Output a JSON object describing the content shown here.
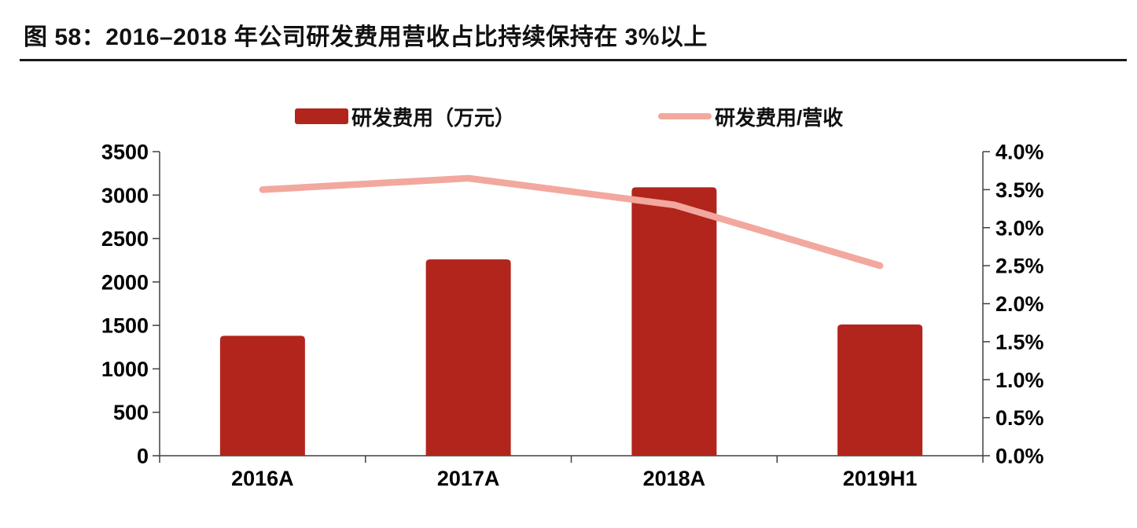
{
  "figure": {
    "title": "图 58：2016–2018 年公司研发费用营收占比持续保持在 3%以上"
  },
  "legend": {
    "items": [
      {
        "label": "研发费用（万元）",
        "type": "bar"
      },
      {
        "label": "研发费用/营收",
        "type": "line"
      }
    ]
  },
  "colors": {
    "bar": "#B2251C",
    "line": "#F2A89E",
    "axis": "#404040",
    "text": "#000000",
    "rule": "#1A1A1A"
  },
  "chart_data": {
    "type": "bar",
    "title": "图 58：2016–2018 年公司研发费用营收占比持续保持在 3%以上",
    "categories": [
      "2016A",
      "2017A",
      "2018A",
      "2019H1"
    ],
    "series": [
      {
        "name": "研发费用（万元）",
        "type": "bar",
        "axis": "left",
        "values": [
          1380,
          2260,
          3090,
          1510
        ]
      },
      {
        "name": "研发费用/营收",
        "type": "line",
        "axis": "right",
        "values": [
          3.5,
          3.65,
          3.3,
          2.5
        ]
      }
    ],
    "left_axis": {
      "label": "研发费用（万元）",
      "min": 0,
      "max": 3500,
      "step": 500,
      "ticks": [
        "3500",
        "3000",
        "2500",
        "2000",
        "1500",
        "1000",
        "500",
        "0"
      ]
    },
    "right_axis": {
      "label": "研发费用/营收",
      "min": 0,
      "max": 4.0,
      "step": 0.5,
      "format": "percent",
      "ticks": [
        "4.0%",
        "3.5%",
        "3.0%",
        "2.5%",
        "2.0%",
        "1.5%",
        "1.0%",
        "0.5%",
        "0.0%"
      ]
    },
    "grid": false,
    "legend_position": "top"
  }
}
